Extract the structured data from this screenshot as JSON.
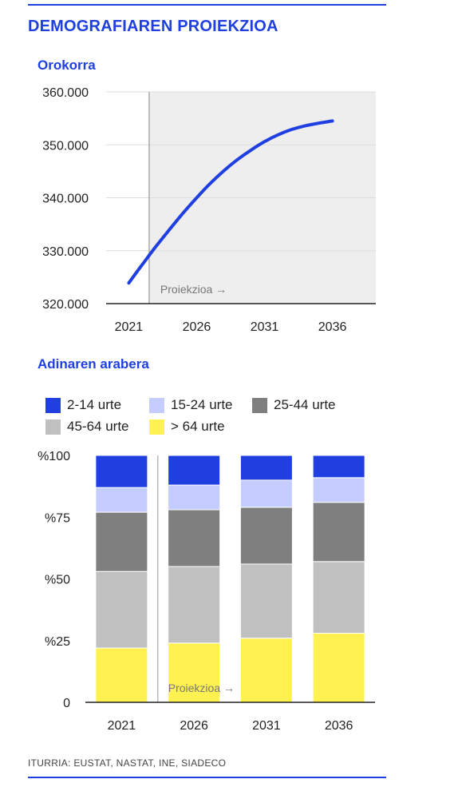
{
  "header": {
    "title": "DEMOGRAFIAREN PROIEKZIOA"
  },
  "source": "ITURRIA: EUSTAT, NASTAT, INE, SIADECO",
  "colors": {
    "accent": "#1f3fe0",
    "shade": "#eeeeee",
    "gridline": "#dddddd"
  },
  "chart_data": [
    {
      "type": "line",
      "title": "Orokorra",
      "x": [
        2021,
        2022,
        2023,
        2024,
        2025,
        2026,
        2027,
        2028,
        2029,
        2030,
        2031,
        2032,
        2033,
        2034,
        2035,
        2036
      ],
      "series": [
        {
          "values": [
            323900,
            327400,
            330800,
            334000,
            337100,
            340000,
            342700,
            345100,
            347200,
            349000,
            350600,
            351900,
            352900,
            353600,
            354100,
            354500
          ]
        }
      ],
      "x_ticks": [
        "2021",
        "2026",
        "2031",
        "2036"
      ],
      "y_ticks": [
        "320.000",
        "330.000",
        "340.000",
        "350.000",
        "360.000"
      ],
      "ylim": [
        320000,
        360000
      ],
      "projection_start": 2022.5,
      "projection_label": "Proiekzioa →",
      "grid": true,
      "color": "#1f3fe0"
    },
    {
      "type": "bar",
      "stacked": true,
      "title": "Adinaren arabera",
      "categories": [
        "2021",
        "2026",
        "2031",
        "2036"
      ],
      "series": [
        {
          "name": "> 64 urte",
          "color": "#fff250",
          "values": [
            22,
            24,
            26,
            28
          ]
        },
        {
          "name": "45-64 urte",
          "color": "#c0c0c0",
          "values": [
            31,
            31,
            30,
            29
          ]
        },
        {
          "name": "25-44 urte",
          "color": "#7f7f7f",
          "values": [
            24,
            23,
            23,
            24
          ]
        },
        {
          "name": "15-24 urte",
          "color": "#c5ccff",
          "values": [
            10,
            10,
            11,
            10
          ]
        },
        {
          "name": "2-14 urte",
          "color": "#1f3fe0",
          "values": [
            13,
            12,
            10,
            9
          ]
        }
      ],
      "legend_order": [
        "2-14 urte",
        "15-24 urte",
        "25-44 urte",
        "45-64 urte",
        "> 64 urte"
      ],
      "y_ticks": [
        "0",
        "%25",
        "%50",
        "%75",
        "%100"
      ],
      "ylim": [
        0,
        100
      ],
      "projection_label": "Proiekzioa →",
      "legend_position": "top"
    }
  ]
}
